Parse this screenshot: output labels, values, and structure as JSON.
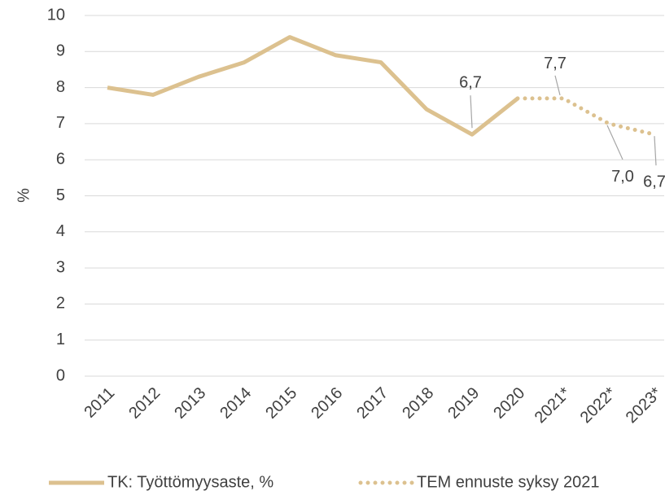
{
  "chart_data": {
    "type": "line",
    "y_label": "%",
    "categories": [
      "2011",
      "2012",
      "2013",
      "2014",
      "2015",
      "2016",
      "2017",
      "2018",
      "2019",
      "2020",
      "2021*",
      "2022*",
      "2023*"
    ],
    "series": [
      {
        "name": "TK: Työttömyysaste, %",
        "color": "#dcc18f",
        "style": "solid",
        "values": [
          8.0,
          7.8,
          8.3,
          8.7,
          9.4,
          8.9,
          8.7,
          7.4,
          6.7,
          7.7,
          null,
          null,
          null
        ],
        "value_labels": [
          null,
          null,
          null,
          null,
          null,
          null,
          null,
          null,
          "6,7",
          null,
          null,
          null,
          null
        ]
      },
      {
        "name": "TEM ennuste syksy 2021",
        "color": "#dcc18f",
        "style": "dotted",
        "values": [
          null,
          null,
          null,
          null,
          null,
          null,
          null,
          null,
          null,
          7.7,
          7.7,
          7.0,
          6.7
        ],
        "value_labels": [
          null,
          null,
          null,
          null,
          null,
          null,
          null,
          null,
          null,
          null,
          "7,7",
          "7,0",
          "6,7"
        ]
      }
    ],
    "ylim": [
      0,
      10
    ],
    "yticks": [
      0,
      1,
      2,
      3,
      4,
      5,
      6,
      7,
      8,
      9,
      10
    ],
    "grid": true,
    "legend": "bottom"
  }
}
